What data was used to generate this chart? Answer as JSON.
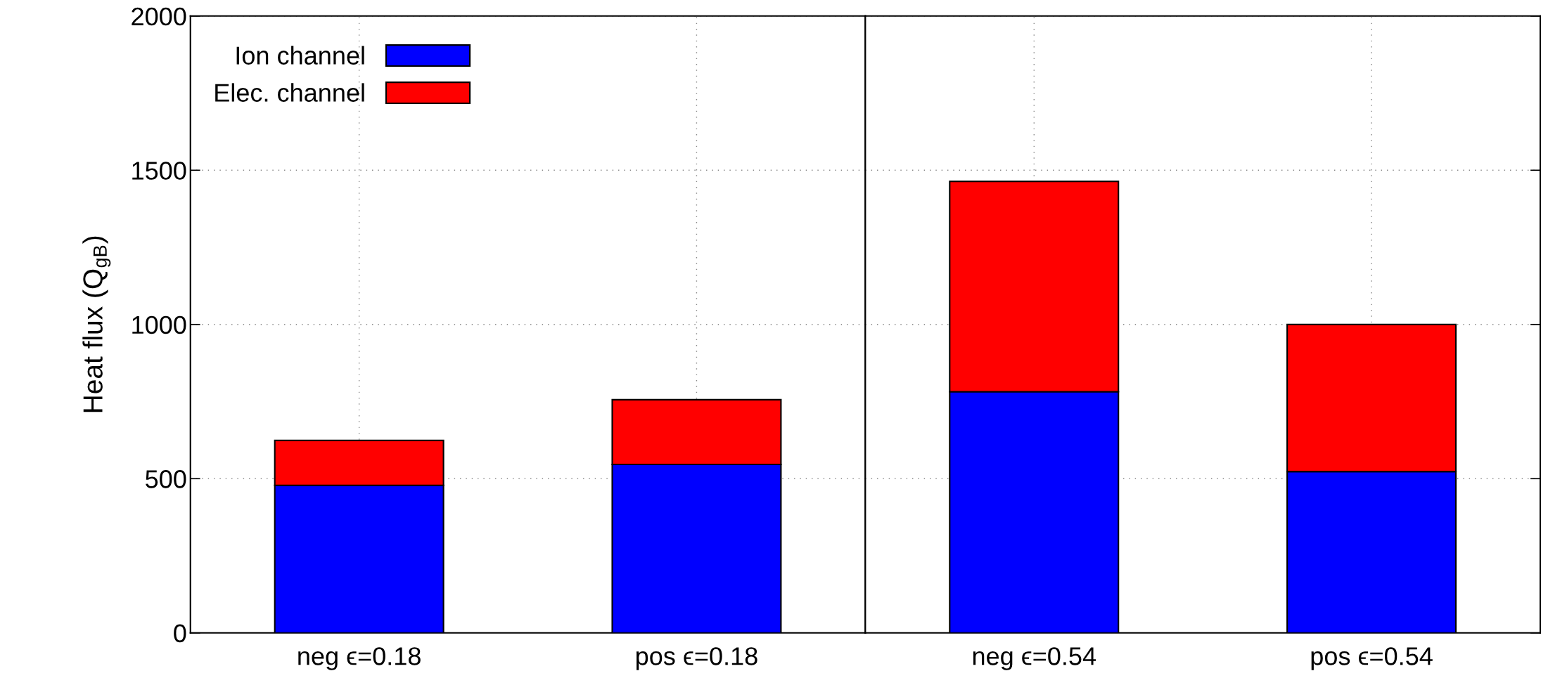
{
  "chart_data": [
    {
      "type": "bar",
      "stacked": true,
      "ylabel": "Heat flux (Q$_{gB}$)",
      "categories": [
        "neg ϵ=0.18",
        "pos ϵ=0.18"
      ],
      "series": [
        {
          "name": "Ion channel",
          "color": "#0000ff",
          "values": [
            478,
            546
          ]
        },
        {
          "name": "Elec. channel",
          "color": "#ff0000",
          "values": [
            146,
            210
          ]
        }
      ],
      "ylim": [
        0,
        2000
      ],
      "yticks": [
        0,
        500,
        1000,
        1500,
        2000
      ],
      "grid": true,
      "legend": "top left"
    },
    {
      "type": "bar",
      "stacked": true,
      "categories": [
        "neg ϵ=0.54",
        "pos ϵ=0.54"
      ],
      "series": [
        {
          "color": "#0000ff",
          "values": [
            782,
            523
          ]
        },
        {
          "color": "#ff0000",
          "values": [
            682,
            477
          ]
        }
      ],
      "ylim": [
        0,
        2000
      ],
      "yticks": [
        0,
        500,
        1000,
        1500,
        2000
      ],
      "grid": true,
      "tick_labels": "x"
    }
  ]
}
